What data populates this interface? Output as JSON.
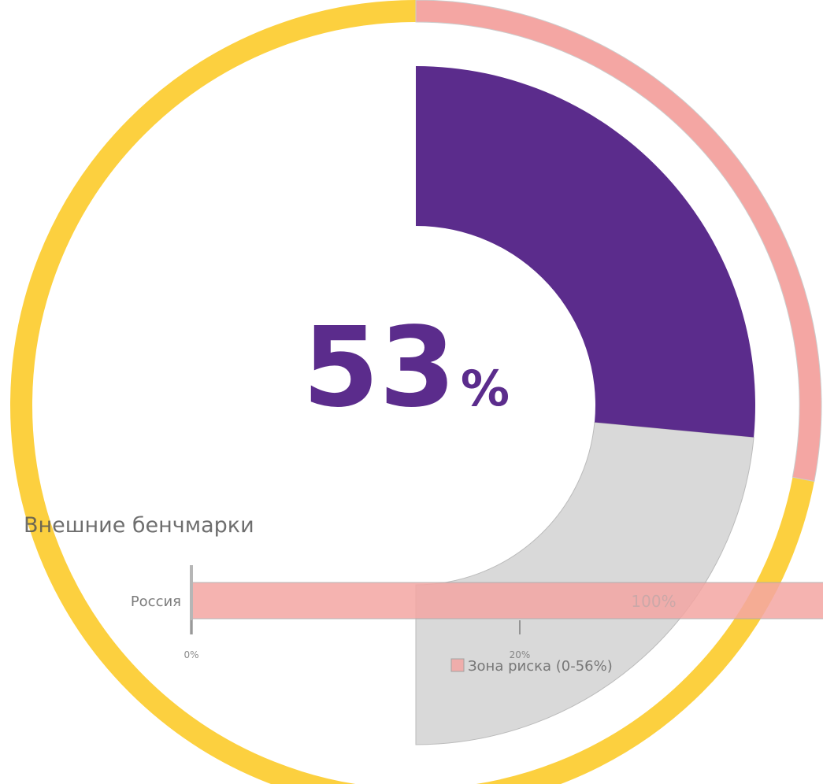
{
  "chart_data": [
    {
      "type": "gauge",
      "value": 53,
      "unit": "%",
      "range": [
        0,
        100
      ],
      "color": "#5b2c8c",
      "track_color": "#d9d9d9",
      "zone": {
        "range": [
          0,
          56
        ],
        "color": "#f4a6a3"
      },
      "ring_color": "#fcd03f"
    },
    {
      "type": "bar",
      "orientation": "horizontal",
      "title": "Внешние бенчмарки",
      "categories": [
        "Россия"
      ],
      "series": [
        {
          "name": "Зона риска (0-56%)",
          "color": "#f4a6a3",
          "values": [
            100
          ],
          "value_labels": [
            "100%"
          ]
        }
      ],
      "xlim": [
        0,
        100
      ],
      "xticks": [
        {
          "value": 0,
          "label": "0%"
        },
        {
          "value": 20,
          "label": "20%"
        }
      ]
    }
  ]
}
